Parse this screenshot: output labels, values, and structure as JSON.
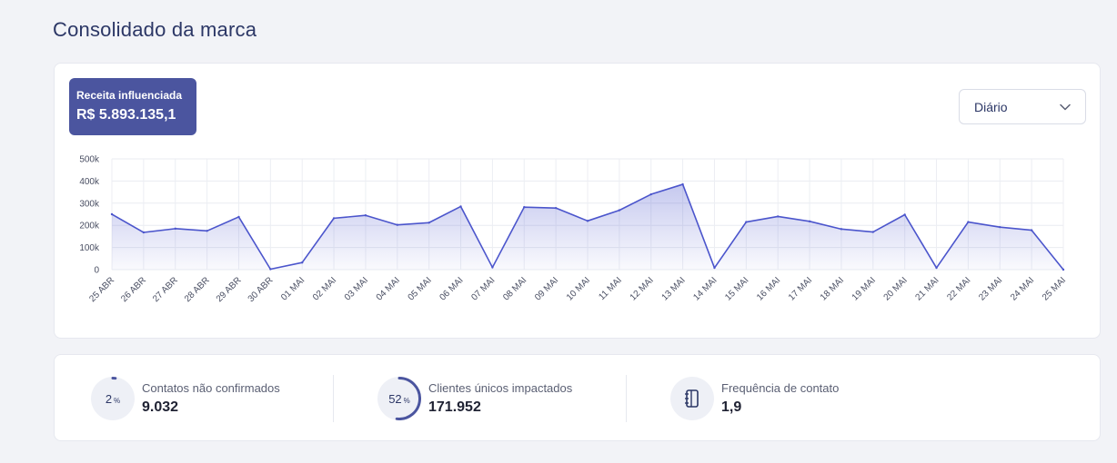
{
  "header": {
    "title": "Consolidado da marca"
  },
  "kpi": {
    "label": "Receita influenciada",
    "value": "R$ 5.893.135,1"
  },
  "period_select": {
    "value": "Diário"
  },
  "colors": {
    "accent": "#4b559f",
    "line": "#4b55cc",
    "fill": "#dfe2f7"
  },
  "chart_data": {
    "type": "area",
    "categories": [
      "25 ABR",
      "26 ABR",
      "27 ABR",
      "28 ABR",
      "29 ABR",
      "30 ABR",
      "01 MAI",
      "02 MAI",
      "03 MAI",
      "04 MAI",
      "05 MAI",
      "06 MAI",
      "07 MAI",
      "08 MAI",
      "09 MAI",
      "10 MAI",
      "11 MAI",
      "12 MAI",
      "13 MAI",
      "14 MAI",
      "15 MAI",
      "16 MAI",
      "17 MAI",
      "18 MAI",
      "19 MAI",
      "20 MAI",
      "21 MAI",
      "22 MAI",
      "23 MAI",
      "24 MAI",
      "25 MAI"
    ],
    "values": [
      250000,
      168000,
      185000,
      175000,
      238000,
      2000,
      32000,
      232000,
      245000,
      202000,
      212000,
      285000,
      10000,
      282000,
      278000,
      220000,
      268000,
      340000,
      385000,
      8000,
      215000,
      240000,
      218000,
      183000,
      170000,
      248000,
      8000,
      215000,
      192000,
      178000,
      0
    ],
    "yticks": [
      0,
      100000,
      200000,
      300000,
      400000,
      500000
    ],
    "ytick_labels": [
      "0",
      "100k",
      "200k",
      "300k",
      "400k",
      "500k"
    ],
    "ylim": [
      0,
      500000
    ],
    "grid": true
  },
  "stats": [
    {
      "percent": "2",
      "percent_unit": "%",
      "fraction": 0.02,
      "label": "Contatos não confirmados",
      "value": "9.032"
    },
    {
      "percent": "52",
      "percent_unit": "%",
      "fraction": 0.52,
      "label": "Clientes únicos impactados",
      "value": "171.952"
    },
    {
      "icon": "notebook-icon",
      "label": "Frequência de contato",
      "value": "1,9"
    }
  ]
}
